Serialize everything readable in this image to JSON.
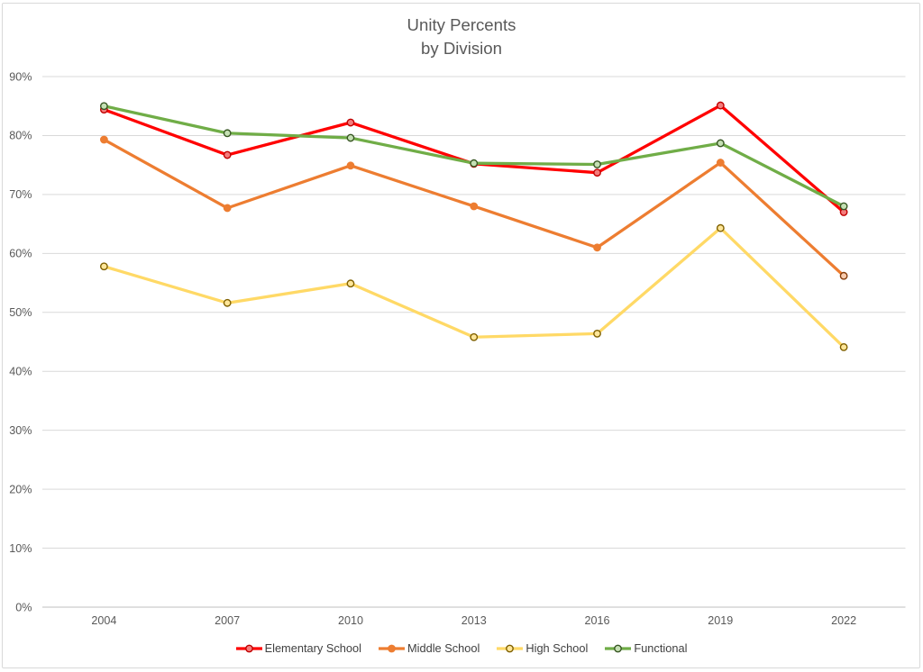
{
  "title_line1": "Unity Percents",
  "title_line2": "by Division",
  "chart_data": {
    "type": "line",
    "title": "Unity Percents\nby Division",
    "categories": [
      "2004",
      "2007",
      "2010",
      "2013",
      "2016",
      "2019",
      "2022"
    ],
    "series": [
      {
        "name": "Elementary School",
        "values": [
          84.4,
          76.7,
          82.2,
          75.2,
          73.7,
          85.1,
          67.0
        ],
        "line_color": "#FF0000",
        "marker_fill": "#F47C7C",
        "marker_border": "#C00000"
      },
      {
        "name": "Middle School",
        "values": [
          79.3,
          67.7,
          74.9,
          68.0,
          61.0,
          75.4,
          56.2
        ],
        "line_color": "#ED7D31",
        "marker_fill": "#ED7D31",
        "marker_border": "#ED7D31",
        "last_marker_fill": "#F8CBAD",
        "last_marker_border": "#843C0C"
      },
      {
        "name": "High School",
        "values": [
          57.8,
          51.6,
          54.9,
          45.8,
          46.4,
          64.3,
          44.1
        ],
        "line_color": "#FFD966",
        "marker_fill": "#FFE699",
        "marker_border": "#7F6000"
      },
      {
        "name": "Functional",
        "values": [
          85.0,
          80.4,
          79.6,
          75.3,
          75.1,
          78.7,
          68.0
        ],
        "line_color": "#70AD47",
        "marker_fill": "#C5E0B4",
        "marker_border": "#385723"
      }
    ],
    "ylabel": "",
    "xlabel": "",
    "ylim": [
      0,
      90
    ],
    "y_ticks": [
      "0%",
      "10%",
      "20%",
      "30%",
      "40%",
      "50%",
      "60%",
      "70%",
      "80%",
      "90%"
    ],
    "y_tick_step": 10,
    "grid": true,
    "gridline_color": "#D9D9D9",
    "axis_line_color": "#BFBFBF",
    "axis_text_color": "#595959",
    "title_color": "#595959",
    "legend_position": "bottom",
    "legend_text_color": "#404040"
  }
}
